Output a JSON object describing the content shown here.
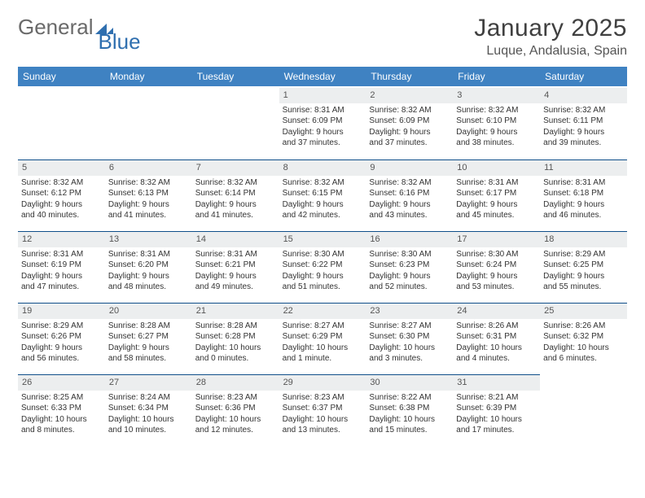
{
  "branding": {
    "word1": "General",
    "word2": "Blue",
    "word1_color": "#6a6a6a",
    "word2_color": "#2f6faf",
    "triangle_color": "#2f6faf"
  },
  "title": {
    "month_year": "January 2025",
    "location": "Luque, Andalusia, Spain",
    "month_fontsize": 30,
    "loc_fontsize": 16
  },
  "colors": {
    "header_bg": "#3f82c2",
    "header_text": "#ffffff",
    "daynum_bg": "#eceeef",
    "row_divider": "#0f4f8a",
    "body_text": "#333333",
    "background": "#ffffff"
  },
  "layout": {
    "columns": 7,
    "cell_fontsize": 10,
    "header_fontsize": 12
  },
  "weekdays": [
    "Sunday",
    "Monday",
    "Tuesday",
    "Wednesday",
    "Thursday",
    "Friday",
    "Saturday"
  ],
  "days": [
    {
      "n": "",
      "empty": true
    },
    {
      "n": "",
      "empty": true
    },
    {
      "n": "",
      "empty": true
    },
    {
      "n": "1",
      "sunrise": "8:31 AM",
      "sunset": "6:09 PM",
      "daylight_l1": "Daylight: 9 hours",
      "daylight_l2": "and 37 minutes."
    },
    {
      "n": "2",
      "sunrise": "8:32 AM",
      "sunset": "6:09 PM",
      "daylight_l1": "Daylight: 9 hours",
      "daylight_l2": "and 37 minutes."
    },
    {
      "n": "3",
      "sunrise": "8:32 AM",
      "sunset": "6:10 PM",
      "daylight_l1": "Daylight: 9 hours",
      "daylight_l2": "and 38 minutes."
    },
    {
      "n": "4",
      "sunrise": "8:32 AM",
      "sunset": "6:11 PM",
      "daylight_l1": "Daylight: 9 hours",
      "daylight_l2": "and 39 minutes."
    },
    {
      "n": "5",
      "sunrise": "8:32 AM",
      "sunset": "6:12 PM",
      "daylight_l1": "Daylight: 9 hours",
      "daylight_l2": "and 40 minutes."
    },
    {
      "n": "6",
      "sunrise": "8:32 AM",
      "sunset": "6:13 PM",
      "daylight_l1": "Daylight: 9 hours",
      "daylight_l2": "and 41 minutes."
    },
    {
      "n": "7",
      "sunrise": "8:32 AM",
      "sunset": "6:14 PM",
      "daylight_l1": "Daylight: 9 hours",
      "daylight_l2": "and 41 minutes."
    },
    {
      "n": "8",
      "sunrise": "8:32 AM",
      "sunset": "6:15 PM",
      "daylight_l1": "Daylight: 9 hours",
      "daylight_l2": "and 42 minutes."
    },
    {
      "n": "9",
      "sunrise": "8:32 AM",
      "sunset": "6:16 PM",
      "daylight_l1": "Daylight: 9 hours",
      "daylight_l2": "and 43 minutes."
    },
    {
      "n": "10",
      "sunrise": "8:31 AM",
      "sunset": "6:17 PM",
      "daylight_l1": "Daylight: 9 hours",
      "daylight_l2": "and 45 minutes."
    },
    {
      "n": "11",
      "sunrise": "8:31 AM",
      "sunset": "6:18 PM",
      "daylight_l1": "Daylight: 9 hours",
      "daylight_l2": "and 46 minutes."
    },
    {
      "n": "12",
      "sunrise": "8:31 AM",
      "sunset": "6:19 PM",
      "daylight_l1": "Daylight: 9 hours",
      "daylight_l2": "and 47 minutes."
    },
    {
      "n": "13",
      "sunrise": "8:31 AM",
      "sunset": "6:20 PM",
      "daylight_l1": "Daylight: 9 hours",
      "daylight_l2": "and 48 minutes."
    },
    {
      "n": "14",
      "sunrise": "8:31 AM",
      "sunset": "6:21 PM",
      "daylight_l1": "Daylight: 9 hours",
      "daylight_l2": "and 49 minutes."
    },
    {
      "n": "15",
      "sunrise": "8:30 AM",
      "sunset": "6:22 PM",
      "daylight_l1": "Daylight: 9 hours",
      "daylight_l2": "and 51 minutes."
    },
    {
      "n": "16",
      "sunrise": "8:30 AM",
      "sunset": "6:23 PM",
      "daylight_l1": "Daylight: 9 hours",
      "daylight_l2": "and 52 minutes."
    },
    {
      "n": "17",
      "sunrise": "8:30 AM",
      "sunset": "6:24 PM",
      "daylight_l1": "Daylight: 9 hours",
      "daylight_l2": "and 53 minutes."
    },
    {
      "n": "18",
      "sunrise": "8:29 AM",
      "sunset": "6:25 PM",
      "daylight_l1": "Daylight: 9 hours",
      "daylight_l2": "and 55 minutes."
    },
    {
      "n": "19",
      "sunrise": "8:29 AM",
      "sunset": "6:26 PM",
      "daylight_l1": "Daylight: 9 hours",
      "daylight_l2": "and 56 minutes."
    },
    {
      "n": "20",
      "sunrise": "8:28 AM",
      "sunset": "6:27 PM",
      "daylight_l1": "Daylight: 9 hours",
      "daylight_l2": "and 58 minutes."
    },
    {
      "n": "21",
      "sunrise": "8:28 AM",
      "sunset": "6:28 PM",
      "daylight_l1": "Daylight: 10 hours",
      "daylight_l2": "and 0 minutes."
    },
    {
      "n": "22",
      "sunrise": "8:27 AM",
      "sunset": "6:29 PM",
      "daylight_l1": "Daylight: 10 hours",
      "daylight_l2": "and 1 minute."
    },
    {
      "n": "23",
      "sunrise": "8:27 AM",
      "sunset": "6:30 PM",
      "daylight_l1": "Daylight: 10 hours",
      "daylight_l2": "and 3 minutes."
    },
    {
      "n": "24",
      "sunrise": "8:26 AM",
      "sunset": "6:31 PM",
      "daylight_l1": "Daylight: 10 hours",
      "daylight_l2": "and 4 minutes."
    },
    {
      "n": "25",
      "sunrise": "8:26 AM",
      "sunset": "6:32 PM",
      "daylight_l1": "Daylight: 10 hours",
      "daylight_l2": "and 6 minutes."
    },
    {
      "n": "26",
      "sunrise": "8:25 AM",
      "sunset": "6:33 PM",
      "daylight_l1": "Daylight: 10 hours",
      "daylight_l2": "and 8 minutes."
    },
    {
      "n": "27",
      "sunrise": "8:24 AM",
      "sunset": "6:34 PM",
      "daylight_l1": "Daylight: 10 hours",
      "daylight_l2": "and 10 minutes."
    },
    {
      "n": "28",
      "sunrise": "8:23 AM",
      "sunset": "6:36 PM",
      "daylight_l1": "Daylight: 10 hours",
      "daylight_l2": "and 12 minutes."
    },
    {
      "n": "29",
      "sunrise": "8:23 AM",
      "sunset": "6:37 PM",
      "daylight_l1": "Daylight: 10 hours",
      "daylight_l2": "and 13 minutes."
    },
    {
      "n": "30",
      "sunrise": "8:22 AM",
      "sunset": "6:38 PM",
      "daylight_l1": "Daylight: 10 hours",
      "daylight_l2": "and 15 minutes."
    },
    {
      "n": "31",
      "sunrise": "8:21 AM",
      "sunset": "6:39 PM",
      "daylight_l1": "Daylight: 10 hours",
      "daylight_l2": "and 17 minutes."
    },
    {
      "n": "",
      "empty": true
    }
  ],
  "labels": {
    "sunrise_prefix": "Sunrise: ",
    "sunset_prefix": "Sunset: "
  }
}
